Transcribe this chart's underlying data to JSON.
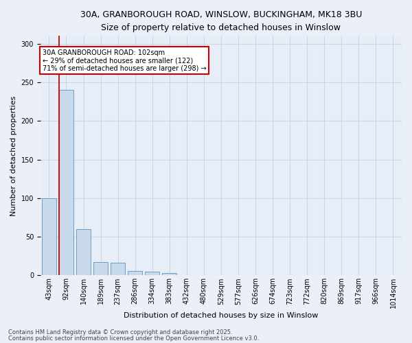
{
  "title_line1": "30A, GRANBOROUGH ROAD, WINSLOW, BUCKINGHAM, MK18 3BU",
  "title_line2": "Size of property relative to detached houses in Winslow",
  "xlabel": "Distribution of detached houses by size in Winslow",
  "ylabel": "Number of detached properties",
  "bar_color": "#c8d9ec",
  "bar_edge_color": "#6a9ec5",
  "categories": [
    "43sqm",
    "92sqm",
    "140sqm",
    "189sqm",
    "237sqm",
    "286sqm",
    "334sqm",
    "383sqm",
    "432sqm",
    "480sqm",
    "529sqm",
    "577sqm",
    "626sqm",
    "674sqm",
    "723sqm",
    "772sqm",
    "820sqm",
    "869sqm",
    "917sqm",
    "966sqm",
    "1014sqm"
  ],
  "values": [
    100,
    240,
    60,
    17,
    16,
    6,
    5,
    3,
    0,
    0,
    0,
    0,
    0,
    0,
    0,
    0,
    0,
    0,
    0,
    0,
    0
  ],
  "subject_line": "30A GRANBOROUGH ROAD: 102sqm",
  "annotation_left": "← 29% of detached houses are smaller (122)",
  "annotation_right": "71% of semi-detached houses are larger (298) →",
  "annotation_box_edge": "#cc0000",
  "red_line_color": "#cc0000",
  "ylim": [
    0,
    310
  ],
  "yticks": [
    0,
    50,
    100,
    150,
    200,
    250,
    300
  ],
  "grid_color": "#ccd6e8",
  "background_color": "#e8eef8",
  "bg_figure": "#eaeff8",
  "footer1": "Contains HM Land Registry data © Crown copyright and database right 2025.",
  "footer2": "Contains public sector information licensed under the Open Government Licence v3.0.",
  "title_fontsize": 9,
  "subtitle_fontsize": 8.5,
  "xlabel_fontsize": 8,
  "ylabel_fontsize": 8,
  "tick_fontsize": 7,
  "footer_fontsize": 6
}
